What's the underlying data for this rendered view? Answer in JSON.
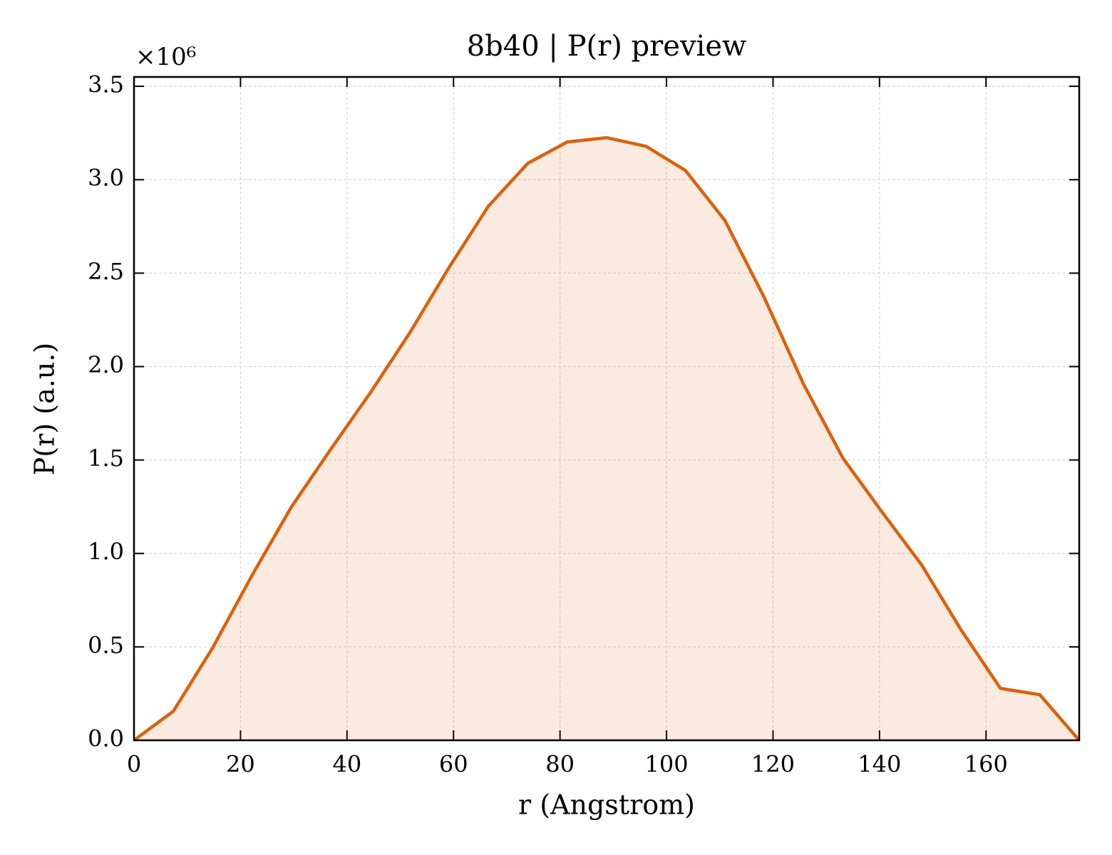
{
  "chart_data": {
    "type": "area_line",
    "title": "8b40 | P(r) preview",
    "xlabel": "r (Angstrom)",
    "ylabel": "P(r) (a.u.)",
    "y_offset_label": "×10⁶",
    "x": [
      0,
      7.4,
      14.79,
      22.19,
      29.58,
      36.98,
      44.38,
      51.77,
      59.17,
      66.56,
      73.96,
      81.35,
      88.75,
      96.15,
      103.54,
      110.94,
      118.33,
      125.73,
      133.13,
      140.52,
      147.92,
      155.31,
      162.71,
      170.1,
      177.5
    ],
    "values": [
      0,
      0.156,
      0.496,
      0.884,
      1.25,
      1.559,
      1.86,
      2.18,
      2.531,
      2.859,
      3.088,
      3.202,
      3.225,
      3.179,
      3.05,
      2.783,
      2.371,
      1.906,
      1.51,
      1.22,
      0.938,
      0.591,
      0.278,
      0.244,
      0
    ],
    "color": "#dc600a",
    "fill_opacity": 0.13,
    "xlim": [
      0,
      177.5
    ],
    "ylim": [
      0,
      3.55
    ],
    "xticks": [
      0,
      20,
      40,
      60,
      80,
      100,
      120,
      140,
      160
    ],
    "yticks": [
      {
        "value": 0,
        "label": "0.0"
      },
      0.5,
      {
        "value": 1,
        "label": "1.0"
      },
      1.5,
      {
        "value": 2,
        "label": "2.0"
      },
      2.5,
      {
        "value": 3,
        "label": "3.0"
      },
      3.5
    ],
    "grid": true
  }
}
